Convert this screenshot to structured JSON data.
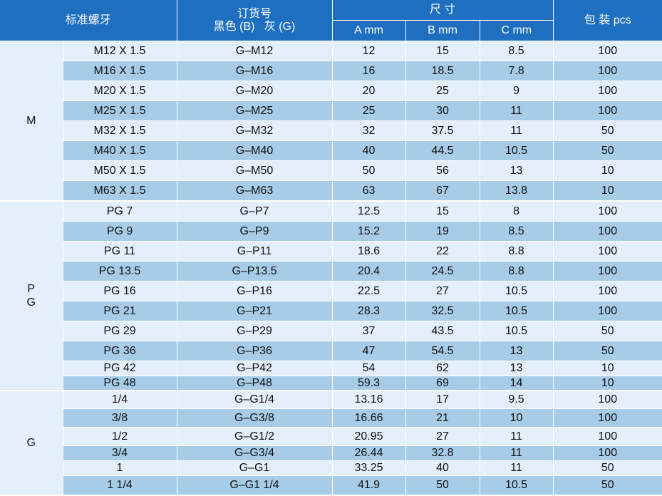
{
  "headers": {
    "thread": "标准螺牙",
    "order_no_line1": "订货号",
    "order_no_line2": "黑色 (B)   灰 (G)",
    "size": "尺 寸",
    "a": "A mm",
    "b": "B mm",
    "c": "C mm",
    "pack": "包 装 pcs"
  },
  "groups": [
    {
      "label_lines": [
        "M"
      ],
      "rows": [
        {
          "thread": "M12 X 1.5",
          "code": "G–M12",
          "a": "12",
          "b": "15",
          "c": "8.5",
          "pcs": "100"
        },
        {
          "thread": "M16 X 1.5",
          "code": "G–M16",
          "a": "16",
          "b": "18.5",
          "c": "7.8",
          "pcs": "100"
        },
        {
          "thread": "M20 X 1.5",
          "code": "G–M20",
          "a": "20",
          "b": "25",
          "c": "9",
          "pcs": "100"
        },
        {
          "thread": "M25 X 1.5",
          "code": "G–M25",
          "a": "25",
          "b": "30",
          "c": "11",
          "pcs": "100"
        },
        {
          "thread": "M32 X 1.5",
          "code": "G–M32",
          "a": "32",
          "b": "37.5",
          "c": "11",
          "pcs": "50"
        },
        {
          "thread": "M40 X 1.5",
          "code": "G–M40",
          "a": "40",
          "b": "44.5",
          "c": "10.5",
          "pcs": "50"
        },
        {
          "thread": "M50 X 1.5",
          "code": "G–M50",
          "a": "50",
          "b": "56",
          "c": "13",
          "pcs": "10"
        },
        {
          "thread": "M63 X 1.5",
          "code": "G–M63",
          "a": "63",
          "b": "67",
          "c": "13.8",
          "pcs": "10"
        }
      ]
    },
    {
      "label_lines": [
        "P",
        "G"
      ],
      "rows": [
        {
          "thread": "PG 7",
          "code": "G–P7",
          "a": "12.5",
          "b": "15",
          "c": "8",
          "pcs": "100"
        },
        {
          "thread": "PG 9",
          "code": "G–P9",
          "a": "15.2",
          "b": "19",
          "c": "8.5",
          "pcs": "100"
        },
        {
          "thread": "PG 11",
          "code": "G–P11",
          "a": "18.6",
          "b": "22",
          "c": "8.8",
          "pcs": "100"
        },
        {
          "thread": "PG 13.5",
          "code": "G–P13.5",
          "a": "20.4",
          "b": "24.5",
          "c": "8.8",
          "pcs": "100"
        },
        {
          "thread": "PG 16",
          "code": "G–P16",
          "a": "22.5",
          "b": "27",
          "c": "10.5",
          "pcs": "100"
        },
        {
          "thread": "PG 21",
          "code": "G–P21",
          "a": "28.3",
          "b": "32.5",
          "c": "10.5",
          "pcs": "100"
        },
        {
          "thread": "PG 29",
          "code": "G–P29",
          "a": "37",
          "b": "43.5",
          "c": "10.5",
          "pcs": "50"
        },
        {
          "thread": "PG 36",
          "code": "G–P36",
          "a": "47",
          "b": "54.5",
          "c": "13",
          "pcs": "50"
        },
        {
          "thread": "PG 42",
          "code": "G–P42",
          "a": "54",
          "b": "62",
          "c": "13",
          "pcs": "10"
        },
        {
          "thread": "PG 48",
          "code": "G–P48",
          "a": "59.3",
          "b": "69",
          "c": "14",
          "pcs": "10"
        }
      ]
    },
    {
      "label_lines": [
        "G"
      ],
      "rows": [
        {
          "thread": "1/4",
          "code": "G–G1/4",
          "a": "13.16",
          "b": "17",
          "c": "9.5",
          "pcs": "100"
        },
        {
          "thread": "3/8",
          "code": "G–G3/8",
          "a": "16.66",
          "b": "21",
          "c": "10",
          "pcs": "100"
        },
        {
          "thread": "1/2",
          "code": "G–G1/2",
          "a": "20.95",
          "b": "27",
          "c": "11",
          "pcs": "100"
        },
        {
          "thread": "3/4",
          "code": "G–G3/4",
          "a": "26.44",
          "b": "32.8",
          "c": "11",
          "pcs": "100"
        },
        {
          "thread": "1",
          "code": "G–G1",
          "a": "33.25",
          "b": "40",
          "c": "11",
          "pcs": "50"
        },
        {
          "thread": "1 1/4",
          "code": "G–G1 1/4",
          "a": "41.9",
          "b": "50",
          "c": "10.5",
          "pcs": "50"
        }
      ]
    }
  ]
}
